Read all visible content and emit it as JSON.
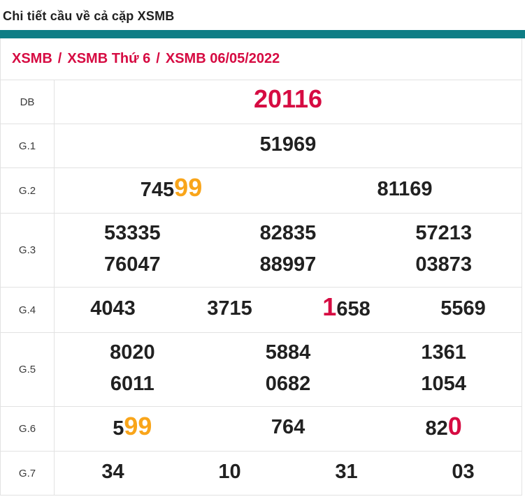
{
  "page": {
    "title": "Chi tiết cầu về cả cặp XSMB"
  },
  "colors": {
    "accent_teal": "#0e7d85",
    "highlight_red": "#d60b42",
    "highlight_orange": "#f9a51a",
    "text": "#212121",
    "border": "#e2e2e2"
  },
  "breadcrumb": {
    "separator": "/",
    "items": [
      "XSMB",
      "XSMB Thứ 6",
      "XSMB 06/05/2022"
    ]
  },
  "table": {
    "rows": [
      {
        "label": "DB",
        "h": 63,
        "cols": [
          {
            "lines": [
              [
                {
                  "t": "20116",
                  "c": "red",
                  "big": true
                }
              ]
            ]
          }
        ]
      },
      {
        "label": "G.1",
        "h": 63,
        "cols": [
          {
            "lines": [
              [
                {
                  "t": "51969"
                }
              ]
            ]
          }
        ]
      },
      {
        "label": "G.2",
        "h": 65,
        "cols": [
          {
            "lines": [
              [
                {
                  "t": "745"
                },
                {
                  "t": "99",
                  "c": "orange",
                  "big": true
                }
              ]
            ]
          },
          {
            "lines": [
              [
                {
                  "t": "81169"
                }
              ]
            ]
          }
        ]
      },
      {
        "label": "G.3",
        "h": 106,
        "cols": [
          {
            "lines": [
              [
                {
                  "t": "53335"
                }
              ],
              [
                {
                  "t": "76047"
                }
              ]
            ]
          },
          {
            "lines": [
              [
                {
                  "t": "82835"
                }
              ],
              [
                {
                  "t": "88997"
                }
              ]
            ]
          },
          {
            "lines": [
              [
                {
                  "t": "57213"
                }
              ],
              [
                {
                  "t": "03873"
                }
              ]
            ]
          }
        ]
      },
      {
        "label": "G.4",
        "h": 65,
        "cols": [
          {
            "lines": [
              [
                {
                  "t": "4043"
                }
              ]
            ]
          },
          {
            "lines": [
              [
                {
                  "t": "3715"
                }
              ]
            ]
          },
          {
            "lines": [
              [
                {
                  "t": "1",
                  "c": "red",
                  "big": true
                },
                {
                  "t": "658"
                }
              ]
            ]
          },
          {
            "lines": [
              [
                {
                  "t": "5569"
                }
              ]
            ]
          }
        ]
      },
      {
        "label": "G.5",
        "h": 106,
        "cols": [
          {
            "lines": [
              [
                {
                  "t": "8020"
                }
              ],
              [
                {
                  "t": "6011"
                }
              ]
            ]
          },
          {
            "lines": [
              [
                {
                  "t": "5884"
                }
              ],
              [
                {
                  "t": "0682"
                }
              ]
            ]
          },
          {
            "lines": [
              [
                {
                  "t": "1361"
                }
              ],
              [
                {
                  "t": "1054"
                }
              ]
            ]
          }
        ]
      },
      {
        "label": "G.6",
        "h": 64,
        "cols": [
          {
            "lines": [
              [
                {
                  "t": "5"
                },
                {
                  "t": "99",
                  "c": "orange",
                  "big": true
                }
              ]
            ]
          },
          {
            "lines": [
              [
                {
                  "t": "764"
                }
              ]
            ]
          },
          {
            "lines": [
              [
                {
                  "t": "82"
                },
                {
                  "t": "0",
                  "c": "red",
                  "big": true
                }
              ]
            ]
          }
        ]
      },
      {
        "label": "G.7",
        "h": 63,
        "cols": [
          {
            "lines": [
              [
                {
                  "t": "34"
                }
              ]
            ]
          },
          {
            "lines": [
              [
                {
                  "t": "10"
                }
              ]
            ]
          },
          {
            "lines": [
              [
                {
                  "t": "31"
                }
              ]
            ]
          },
          {
            "lines": [
              [
                {
                  "t": "03"
                }
              ]
            ]
          }
        ]
      }
    ]
  }
}
